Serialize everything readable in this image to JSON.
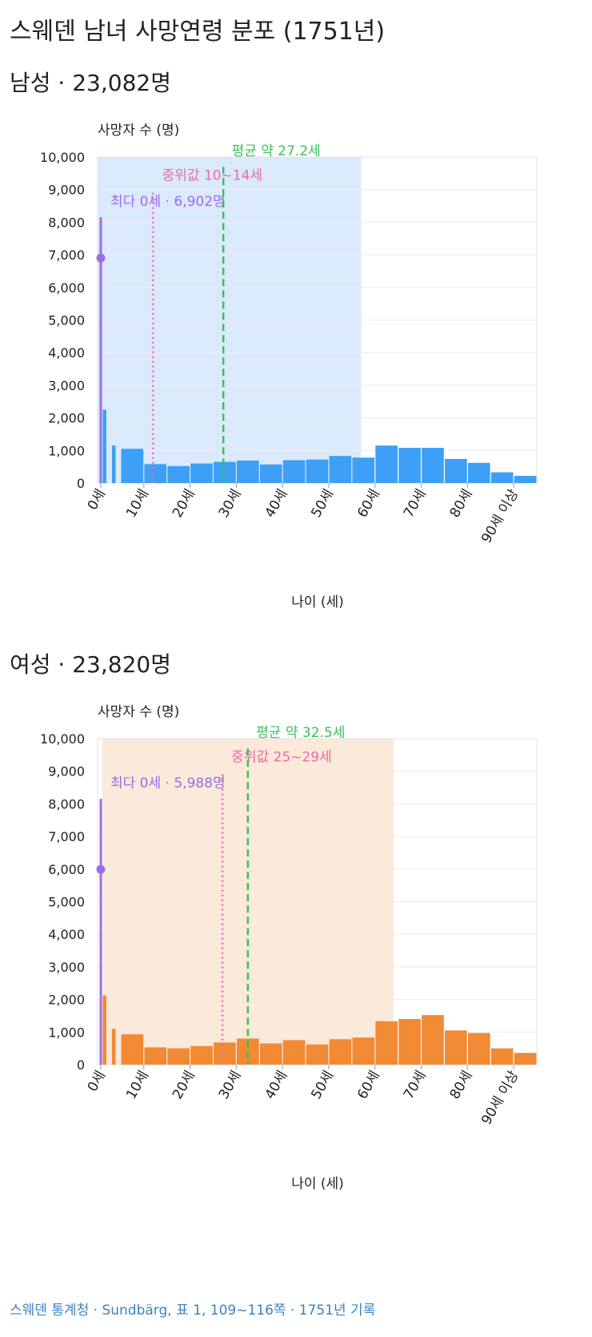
{
  "title": "스웨덴 남녀 사망연령 분포 (1751년)",
  "source": "스웨덴 통계청 · Sundbärg, 표 1, 109~116쪽 · 1751년 기록",
  "colors": {
    "male_bar": "#3d9ff5",
    "female_bar": "#f08a35",
    "male_band": "#dbe9fd",
    "female_band": "#fbe9d9",
    "mode": "#9b6ee8",
    "median": "#ee6aa6",
    "mean": "#3cc05a",
    "grid": "#ececec",
    "axis_text": "#222222"
  },
  "chart_data": [
    {
      "type": "bar",
      "title": "남성 · 23,082명",
      "ylabel": "사망자 수 (명)",
      "xlabel": "나이 (세)",
      "ylim": [
        0,
        10000
      ],
      "yticks": [
        0,
        1000,
        2000,
        3000,
        4000,
        5000,
        6000,
        7000,
        8000,
        9000,
        10000
      ],
      "ytick_labels": [
        "0",
        "1,000",
        "2,000",
        "3,000",
        "4,000",
        "5,000",
        "6,000",
        "7,000",
        "8,000",
        "9,000",
        "10,000"
      ],
      "xlim": [
        0,
        95
      ],
      "xticks": [
        0,
        10,
        20,
        30,
        40,
        50,
        60,
        70,
        80,
        90
      ],
      "xtick_labels": [
        "0세",
        "10세",
        "20세",
        "30세",
        "40세",
        "50세",
        "60세",
        "70세",
        "80세",
        "90세 이상"
      ],
      "age_bins": [
        [
          1,
          2
        ],
        [
          3,
          4
        ],
        [
          5,
          10
        ],
        [
          10,
          15
        ],
        [
          15,
          20
        ],
        [
          20,
          25
        ],
        [
          25,
          30
        ],
        [
          30,
          35
        ],
        [
          35,
          40
        ],
        [
          40,
          45
        ],
        [
          45,
          50
        ],
        [
          50,
          55
        ],
        [
          55,
          60
        ],
        [
          60,
          65
        ],
        [
          65,
          70
        ],
        [
          70,
          75
        ],
        [
          75,
          80
        ],
        [
          80,
          85
        ],
        [
          85,
          90
        ],
        [
          90,
          95
        ]
      ],
      "values": [
        2250,
        1150,
        1050,
        580,
        520,
        600,
        650,
        690,
        570,
        700,
        720,
        830,
        780,
        1150,
        1080,
        1080,
        740,
        620,
        330,
        220
      ],
      "mode": {
        "age": 0,
        "value": 6902,
        "label": "최다 0세 · 6,902명"
      },
      "median": {
        "age": 12,
        "label": "중위값 10~14세"
      },
      "mean": {
        "age": 27.2,
        "label": "평균 약 27.2세"
      },
      "band": [
        0,
        57
      ]
    },
    {
      "type": "bar",
      "title": "여성 · 23,820명",
      "ylabel": "사망자 수 (명)",
      "xlabel": "나이 (세)",
      "ylim": [
        0,
        10000
      ],
      "yticks": [
        0,
        1000,
        2000,
        3000,
        4000,
        5000,
        6000,
        7000,
        8000,
        9000,
        10000
      ],
      "ytick_labels": [
        "0",
        "1,000",
        "2,000",
        "3,000",
        "4,000",
        "5,000",
        "6,000",
        "7,000",
        "8,000",
        "9,000",
        "10,000"
      ],
      "xlim": [
        0,
        95
      ],
      "xticks": [
        0,
        10,
        20,
        30,
        40,
        50,
        60,
        70,
        80,
        90
      ],
      "xtick_labels": [
        "0세",
        "10세",
        "20세",
        "30세",
        "40세",
        "50세",
        "60세",
        "70세",
        "80세",
        "90세 이상"
      ],
      "age_bins": [
        [
          1,
          2
        ],
        [
          3,
          4
        ],
        [
          5,
          10
        ],
        [
          10,
          15
        ],
        [
          15,
          20
        ],
        [
          20,
          25
        ],
        [
          25,
          30
        ],
        [
          30,
          35
        ],
        [
          35,
          40
        ],
        [
          40,
          45
        ],
        [
          45,
          50
        ],
        [
          50,
          55
        ],
        [
          55,
          60
        ],
        [
          60,
          65
        ],
        [
          65,
          70
        ],
        [
          70,
          75
        ],
        [
          75,
          80
        ],
        [
          80,
          85
        ],
        [
          85,
          90
        ],
        [
          90,
          95
        ]
      ],
      "values": [
        2120,
        1100,
        930,
        530,
        500,
        570,
        680,
        800,
        650,
        750,
        620,
        780,
        830,
        1330,
        1400,
        1520,
        1050,
        970,
        500,
        360
      ],
      "mode": {
        "age": 0,
        "value": 5988,
        "label": "최다 0세 · 5,988명"
      },
      "median": {
        "age": 27,
        "label": "중위값 25~29세"
      },
      "mean": {
        "age": 32.5,
        "label": "평균 약 32.5세"
      },
      "band": [
        1,
        64
      ]
    }
  ]
}
